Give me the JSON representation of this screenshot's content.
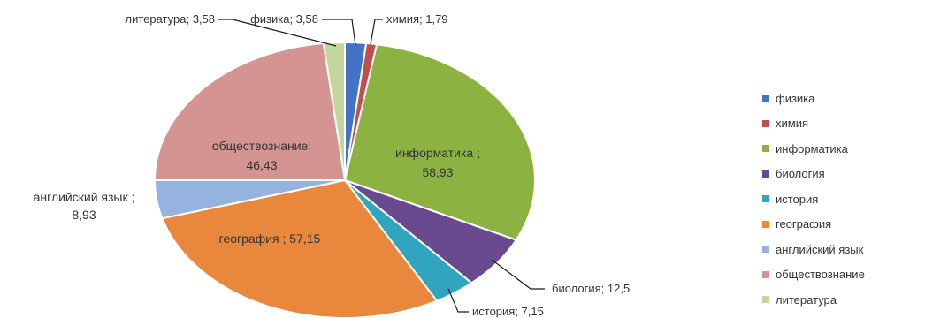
{
  "chart_data": {
    "type": "pie",
    "title": "",
    "slices": [
      {
        "name": "физика",
        "value": 3.58,
        "label": "физика; 3,58",
        "color": "#4472C4"
      },
      {
        "name": "химия",
        "value": 1.79,
        "label": "химия; 1,79",
        "color": "#C0504D"
      },
      {
        "name": "информатика",
        "value": 58.93,
        "label": [
          "информатика ;",
          "58,93"
        ],
        "color": "#8CB342"
      },
      {
        "name": "биология",
        "value": 12.5,
        "label": "биология; 12,5",
        "color": "#6A4A8E"
      },
      {
        "name": "история",
        "value": 7.15,
        "label": "история; 7,15",
        "color": "#31A4C0"
      },
      {
        "name": "география",
        "value": 57.15,
        "label": "география ; 57,15",
        "color": "#E9883D"
      },
      {
        "name": "английский язык",
        "value": 8.93,
        "label": [
          "английский язык ;",
          "8,93"
        ],
        "color": "#95B3DE"
      },
      {
        "name": "обществознание",
        "value": 46.43,
        "label": [
          "обществознание;",
          "46,43"
        ],
        "color": "#D49492"
      },
      {
        "name": "литература",
        "value": 3.58,
        "label": "литература; 3,58",
        "color": "#C3D69B"
      }
    ],
    "legend_position": "right"
  }
}
